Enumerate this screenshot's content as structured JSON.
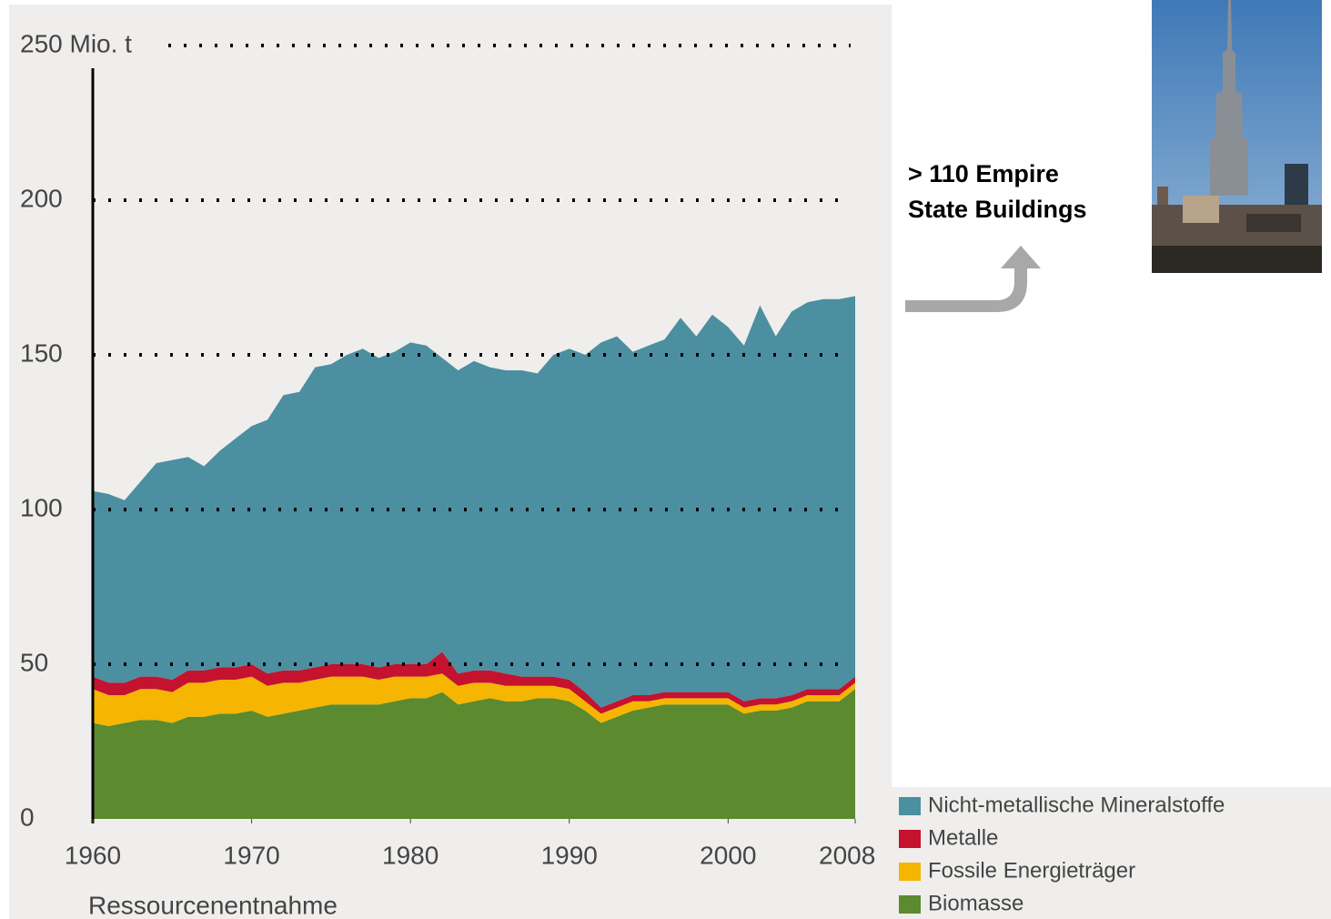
{
  "chart_data": {
    "type": "stacked-area",
    "x_label": "Ressourcenentnahme",
    "annotation": [
      "> 110 Empire",
      "State Buildings"
    ],
    "x": [
      1960,
      1961,
      1962,
      1963,
      1964,
      1965,
      1966,
      1967,
      1968,
      1969,
      1970,
      1971,
      1972,
      1973,
      1974,
      1975,
      1976,
      1977,
      1978,
      1979,
      1980,
      1981,
      1982,
      1983,
      1984,
      1985,
      1986,
      1987,
      1988,
      1989,
      1990,
      1991,
      1992,
      1993,
      1994,
      1995,
      1996,
      1997,
      1998,
      1999,
      2000,
      2001,
      2002,
      2003,
      2004,
      2005,
      2006,
      2007,
      2008
    ],
    "series": [
      {
        "name": "Biomasse",
        "color": "#5b8a2f",
        "values": [
          31,
          30,
          31,
          32,
          32,
          31,
          33,
          33,
          34,
          34,
          35,
          33,
          34,
          35,
          36,
          37,
          37,
          37,
          37,
          38,
          39,
          39,
          41,
          37,
          38,
          39,
          38,
          38,
          39,
          39,
          38,
          35,
          31,
          33,
          35,
          36,
          37,
          37,
          37,
          37,
          37,
          34,
          35,
          35,
          36,
          38,
          38,
          38,
          42
        ]
      },
      {
        "name": "Fossile Energieträger",
        "color": "#f5b500",
        "values": [
          11,
          10,
          9,
          10,
          10,
          10,
          11,
          11,
          11,
          11,
          11,
          10,
          10,
          9,
          9,
          9,
          9,
          9,
          8,
          8,
          7,
          7,
          6,
          6,
          6,
          5,
          5,
          5,
          4,
          4,
          4,
          3,
          3,
          3,
          3,
          2,
          2,
          2,
          2,
          2,
          2,
          2,
          2,
          2,
          2,
          2,
          2,
          2,
          2
        ]
      },
      {
        "name": "Metalle",
        "color": "#c4122f",
        "values": [
          4,
          4,
          4,
          4,
          4,
          4,
          4,
          4,
          4,
          4,
          4,
          4,
          4,
          4,
          4,
          4,
          4,
          4,
          4,
          4,
          4,
          4,
          7,
          4,
          4,
          4,
          4,
          3,
          3,
          3,
          3,
          3,
          2,
          2,
          2,
          2,
          2,
          2,
          2,
          2,
          2,
          2,
          2,
          2,
          2,
          2,
          2,
          2,
          2
        ]
      },
      {
        "name": "Nicht-metallische Mineralstoffe",
        "color": "#4b8fa1",
        "values": [
          60,
          61,
          59,
          63,
          69,
          71,
          69,
          66,
          70,
          74,
          77,
          82,
          89,
          90,
          97,
          97,
          100,
          102,
          100,
          101,
          104,
          103,
          95,
          98,
          100,
          98,
          98,
          99,
          98,
          104,
          107,
          109,
          118,
          118,
          111,
          113,
          114,
          121,
          115,
          122,
          118,
          115,
          127,
          117,
          124,
          125,
          126,
          126,
          123
        ]
      }
    ],
    "xlim": [
      1960,
      2008
    ],
    "xticks": [
      1960,
      1970,
      1980,
      1990,
      2000,
      2008
    ],
    "ylim": [
      0,
      250
    ],
    "yticks": [
      0,
      50,
      100,
      150,
      {
        "value": 250,
        "label": "250 Mio. t"
      },
      200
    ],
    "grid": true
  }
}
